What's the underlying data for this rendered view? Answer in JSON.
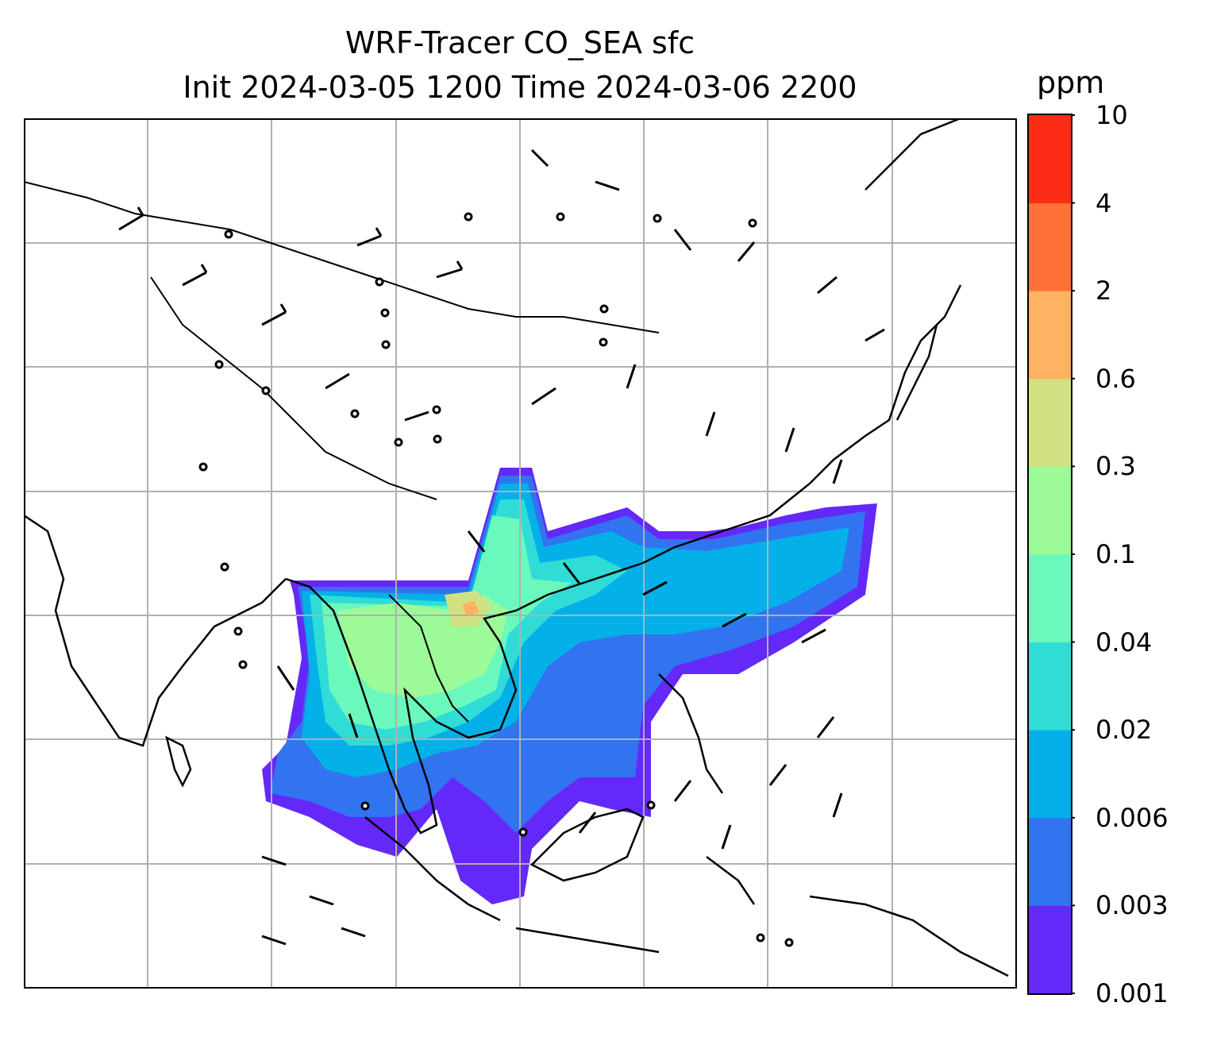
{
  "title": {
    "line1": "WRF-Tracer CO_SEA sfc",
    "line2": "Init 2024-03-05 1200 Time 2024-03-06 2200"
  },
  "colorbar": {
    "unit": "ppm",
    "levels": [
      "0.001",
      "0.003",
      "0.006",
      "0.02",
      "0.04",
      "0.1",
      "0.3",
      "0.6",
      "2",
      "4",
      "10"
    ],
    "colors": [
      "#6428f8",
      "#3273f0",
      "#04b0e8",
      "#30dcd6",
      "#6af8bc",
      "#9cfa98",
      "#d2e084",
      "#feb262",
      "#ff7038",
      "#fc2c16"
    ]
  },
  "map": {
    "projection": "regional",
    "gridlines": true,
    "features": [
      "coastlines",
      "country-borders",
      "wind-barbs",
      "tracer-filled-contours"
    ],
    "tracer": "CO_SEA",
    "level": "sfc"
  }
}
